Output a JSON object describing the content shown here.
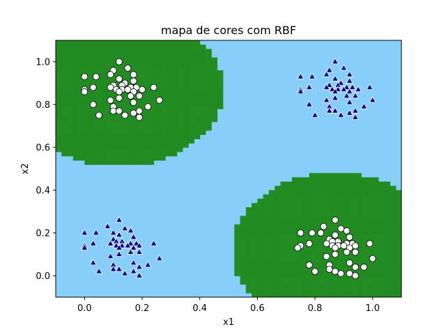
{
  "chart_data": {
    "type": "scatter",
    "title": "mapa de cores com RBF",
    "xlabel": "x1",
    "ylabel": "x2",
    "xlim": [
      -0.1,
      1.1
    ],
    "ylim": [
      -0.1,
      1.1
    ],
    "xticks": [
      "0.0",
      "0.2",
      "0.4",
      "0.6",
      "0.8",
      "1.0"
    ],
    "yticks": [
      "0.0",
      "0.2",
      "0.4",
      "0.6",
      "0.8",
      "1.0"
    ],
    "grid": false,
    "colors": {
      "background_region": "#87cefa",
      "circle_region": "#228b22",
      "triangle_marker": "#00008b",
      "circle_marker_fill": "#ffffff",
      "marker_edge": "#ffffff",
      "circle_edge": "#000000"
    },
    "decision_regions": [
      {
        "class": "circle",
        "center": [
          0.12,
          0.87
        ],
        "radius": 0.36
      },
      {
        "class": "circle",
        "center": [
          0.87,
          0.12
        ],
        "radius": 0.36
      }
    ],
    "series": [
      {
        "marker": "circle",
        "points": [
          [
            0.12,
            1.0
          ],
          [
            0.15,
            0.97
          ],
          [
            0.1,
            0.96
          ],
          [
            0.17,
            0.94
          ],
          [
            0.09,
            0.94
          ],
          [
            0.0,
            0.93
          ],
          [
            0.04,
            0.93
          ],
          [
            0.12,
            0.92
          ],
          [
            0.17,
            0.91
          ],
          [
            0.14,
            0.9
          ],
          [
            0.13,
            0.89
          ],
          [
            0.1,
            0.89
          ],
          [
            0.24,
            0.88
          ],
          [
            0.09,
            0.88
          ],
          [
            0.16,
            0.88
          ],
          [
            0.18,
            0.88
          ],
          [
            0.03,
            0.88
          ],
          [
            0.0,
            0.87
          ],
          [
            0.11,
            0.87
          ],
          [
            0.13,
            0.87
          ],
          [
            0.15,
            0.87
          ],
          [
            0.2,
            0.87
          ],
          [
            0.0,
            0.86
          ],
          [
            0.12,
            0.86
          ],
          [
            0.17,
            0.86
          ],
          [
            0.16,
            0.84
          ],
          [
            0.19,
            0.84
          ],
          [
            0.12,
            0.83
          ],
          [
            0.09,
            0.82
          ],
          [
            0.26,
            0.82
          ],
          [
            0.17,
            0.81
          ],
          [
            0.03,
            0.8
          ],
          [
            0.1,
            0.79
          ],
          [
            0.22,
            0.79
          ],
          [
            0.1,
            0.77
          ],
          [
            0.19,
            0.77
          ],
          [
            0.12,
            0.77
          ],
          [
            0.17,
            0.76
          ],
          [
            0.05,
            0.75
          ],
          [
            0.14,
            0.75
          ],
          [
            0.19,
            0.74
          ],
          [
            0.87,
            0.26
          ],
          [
            0.83,
            0.23
          ],
          [
            0.89,
            0.22
          ],
          [
            0.91,
            0.21
          ],
          [
            0.82,
            0.2
          ],
          [
            0.75,
            0.2
          ],
          [
            0.79,
            0.2
          ],
          [
            0.87,
            0.19
          ],
          [
            0.92,
            0.18
          ],
          [
            0.85,
            0.17
          ],
          [
            0.88,
            0.16
          ],
          [
            0.86,
            0.16
          ],
          [
            0.99,
            0.15
          ],
          [
            0.84,
            0.15
          ],
          [
            0.91,
            0.15
          ],
          [
            0.93,
            0.15
          ],
          [
            0.78,
            0.15
          ],
          [
            0.75,
            0.14
          ],
          [
            0.86,
            0.14
          ],
          [
            0.88,
            0.14
          ],
          [
            0.9,
            0.14
          ],
          [
            0.94,
            0.14
          ],
          [
            0.74,
            0.13
          ],
          [
            0.87,
            0.13
          ],
          [
            0.92,
            0.13
          ],
          [
            0.91,
            0.11
          ],
          [
            0.94,
            0.11
          ],
          [
            0.87,
            0.1
          ],
          [
            0.84,
            0.09
          ],
          [
            1.0,
            0.08
          ],
          [
            0.92,
            0.06
          ],
          [
            0.78,
            0.05
          ],
          [
            0.85,
            0.05
          ],
          [
            0.97,
            0.04
          ],
          [
            0.85,
            0.03
          ],
          [
            0.94,
            0.04
          ],
          [
            0.87,
            0.02
          ],
          [
            0.92,
            0.01
          ],
          [
            0.8,
            0.02
          ],
          [
            0.89,
            0.01
          ],
          [
            0.94,
            0.0
          ]
        ]
      },
      {
        "marker": "triangle",
        "points": [
          [
            0.87,
            1.0
          ],
          [
            0.9,
            0.97
          ],
          [
            0.85,
            0.96
          ],
          [
            0.92,
            0.94
          ],
          [
            0.84,
            0.94
          ],
          [
            0.75,
            0.93
          ],
          [
            0.79,
            0.93
          ],
          [
            0.87,
            0.92
          ],
          [
            0.92,
            0.91
          ],
          [
            0.89,
            0.9
          ],
          [
            0.88,
            0.89
          ],
          [
            0.85,
            0.89
          ],
          [
            0.99,
            0.88
          ],
          [
            0.84,
            0.88
          ],
          [
            0.91,
            0.88
          ],
          [
            0.93,
            0.88
          ],
          [
            0.78,
            0.88
          ],
          [
            0.75,
            0.87
          ],
          [
            0.86,
            0.87
          ],
          [
            0.88,
            0.87
          ],
          [
            0.9,
            0.87
          ],
          [
            0.95,
            0.87
          ],
          [
            0.75,
            0.86
          ],
          [
            0.87,
            0.86
          ],
          [
            0.92,
            0.86
          ],
          [
            0.91,
            0.84
          ],
          [
            0.94,
            0.84
          ],
          [
            0.87,
            0.83
          ],
          [
            0.84,
            0.82
          ],
          [
            1.0,
            0.82
          ],
          [
            0.92,
            0.81
          ],
          [
            0.78,
            0.8
          ],
          [
            0.85,
            0.79
          ],
          [
            0.97,
            0.79
          ],
          [
            0.85,
            0.77
          ],
          [
            0.94,
            0.77
          ],
          [
            0.87,
            0.77
          ],
          [
            0.92,
            0.76
          ],
          [
            0.8,
            0.75
          ],
          [
            0.89,
            0.75
          ],
          [
            0.94,
            0.74
          ],
          [
            0.12,
            0.26
          ],
          [
            0.08,
            0.23
          ],
          [
            0.14,
            0.22
          ],
          [
            0.16,
            0.21
          ],
          [
            0.1,
            0.2
          ],
          [
            0.0,
            0.2
          ],
          [
            0.04,
            0.2
          ],
          [
            0.12,
            0.19
          ],
          [
            0.17,
            0.18
          ],
          [
            0.1,
            0.17
          ],
          [
            0.13,
            0.16
          ],
          [
            0.11,
            0.16
          ],
          [
            0.24,
            0.15
          ],
          [
            0.09,
            0.15
          ],
          [
            0.16,
            0.15
          ],
          [
            0.18,
            0.15
          ],
          [
            0.03,
            0.15
          ],
          [
            0.0,
            0.14
          ],
          [
            0.11,
            0.14
          ],
          [
            0.13,
            0.14
          ],
          [
            0.15,
            0.14
          ],
          [
            0.19,
            0.14
          ],
          [
            0.0,
            0.13
          ],
          [
            0.12,
            0.13
          ],
          [
            0.17,
            0.13
          ],
          [
            0.16,
            0.11
          ],
          [
            0.19,
            0.11
          ],
          [
            0.12,
            0.1
          ],
          [
            0.09,
            0.09
          ],
          [
            0.26,
            0.08
          ],
          [
            0.17,
            0.06
          ],
          [
            0.03,
            0.06
          ],
          [
            0.1,
            0.05
          ],
          [
            0.22,
            0.05
          ],
          [
            0.1,
            0.03
          ],
          [
            0.19,
            0.04
          ],
          [
            0.12,
            0.03
          ],
          [
            0.17,
            0.02
          ],
          [
            0.05,
            0.02
          ],
          [
            0.14,
            0.01
          ],
          [
            0.19,
            0.0
          ]
        ]
      }
    ]
  }
}
